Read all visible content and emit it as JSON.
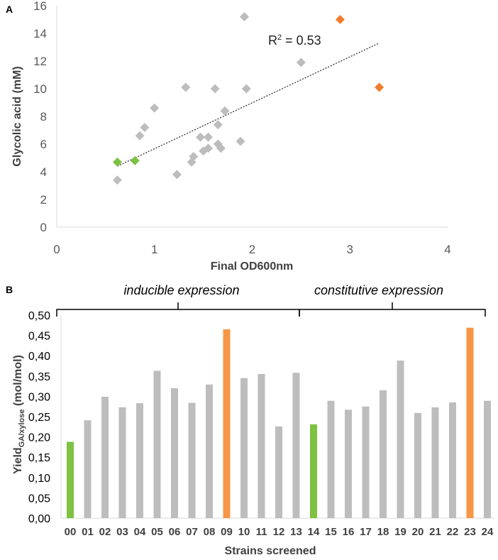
{
  "chart_data": [
    {
      "panel_label": "A",
      "type": "scatter",
      "title": "",
      "xlabel": "Final OD600nm",
      "ylabel": "Glycolic acid (mM)",
      "xlim": [
        0,
        4
      ],
      "ylim": [
        0,
        16
      ],
      "xticks": [
        "0",
        "1",
        "2",
        "3",
        "4"
      ],
      "yticks": [
        "0",
        "2",
        "4",
        "6",
        "8",
        "10",
        "12",
        "14",
        "16"
      ],
      "grid": false,
      "annotation": "R² = 0.53",
      "colors": {
        "default": "#BDBDBD",
        "green": "#7DC242",
        "orange": "#F07E2E",
        "trendline": "#333333"
      },
      "series": [
        {
          "name": "strains",
          "color": "#BDBDBD",
          "points": [
            [
              0.62,
              3.4
            ],
            [
              0.85,
              6.6
            ],
            [
              0.9,
              7.2
            ],
            [
              1.0,
              8.6
            ],
            [
              1.23,
              3.8
            ],
            [
              1.32,
              10.1
            ],
            [
              1.38,
              4.7
            ],
            [
              1.4,
              5.1
            ],
            [
              1.47,
              6.5
            ],
            [
              1.5,
              5.5
            ],
            [
              1.55,
              6.5
            ],
            [
              1.55,
              5.7
            ],
            [
              1.62,
              10.0
            ],
            [
              1.65,
              6.0
            ],
            [
              1.65,
              7.4
            ],
            [
              1.68,
              5.7
            ],
            [
              1.72,
              8.4
            ],
            [
              1.88,
              6.2
            ],
            [
              1.92,
              15.2
            ],
            [
              1.94,
              10.0
            ],
            [
              2.5,
              11.9
            ]
          ]
        },
        {
          "name": "green",
          "color": "#7DC242",
          "points": [
            [
              0.62,
              4.7
            ],
            [
              0.8,
              4.8
            ]
          ]
        },
        {
          "name": "orange",
          "color": "#F07E2E",
          "points": [
            [
              2.9,
              15.0
            ],
            [
              3.3,
              10.1
            ]
          ]
        }
      ],
      "trendline": {
        "style": "dotted",
        "x": [
          0.62,
          3.3
        ],
        "y": [
          4.4,
          13.3
        ]
      }
    },
    {
      "panel_label": "B",
      "type": "bar",
      "title": "",
      "xlabel": "Strains screened",
      "ylabel_main": "Yield",
      "ylabel_sub": "GA/xylose",
      "ylabel_unit": " (mol/mol)",
      "ylim": [
        0,
        0.5
      ],
      "yticks": [
        "0,00",
        "0,05",
        "0,10",
        "0,15",
        "0,20",
        "0,25",
        "0,30",
        "0,35",
        "0,40",
        "0,45",
        "0,50"
      ],
      "grid": false,
      "categories": [
        "00",
        "01",
        "02",
        "03",
        "04",
        "05",
        "06",
        "07",
        "08",
        "09",
        "10",
        "11",
        "12",
        "13",
        "14",
        "15",
        "16",
        "17",
        "18",
        "19",
        "20",
        "21",
        "22",
        "23",
        "24"
      ],
      "values": [
        0.188,
        0.241,
        0.299,
        0.273,
        0.283,
        0.363,
        0.32,
        0.284,
        0.329,
        0.465,
        0.345,
        0.355,
        0.226,
        0.358,
        0.231,
        0.289,
        0.267,
        0.275,
        0.315,
        0.388,
        0.259,
        0.273,
        0.285,
        0.469,
        0.289
      ],
      "bar_colors": [
        "#7DC242",
        "#BDBDBD",
        "#BDBDBD",
        "#BDBDBD",
        "#BDBDBD",
        "#BDBDBD",
        "#BDBDBD",
        "#BDBDBD",
        "#BDBDBD",
        "#F79646",
        "#BDBDBD",
        "#BDBDBD",
        "#BDBDBD",
        "#BDBDBD",
        "#7DC242",
        "#BDBDBD",
        "#BDBDBD",
        "#BDBDBD",
        "#BDBDBD",
        "#BDBDBD",
        "#BDBDBD",
        "#BDBDBD",
        "#BDBDBD",
        "#F79646",
        "#BDBDBD"
      ],
      "groups": [
        {
          "label": "inducible expression",
          "from": "00",
          "to": "13"
        },
        {
          "label": "constitutive expression",
          "from": "13",
          "to": "24"
        }
      ]
    }
  ]
}
